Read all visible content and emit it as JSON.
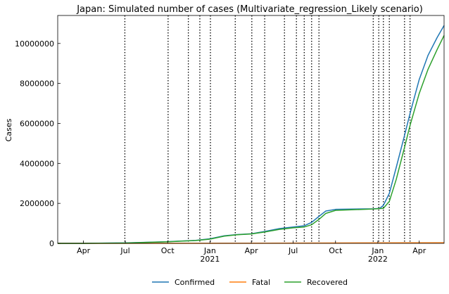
{
  "chart_data": {
    "type": "line",
    "title": "Japan: Simulated number of cases (Multivariate_regression_Likely scenario)",
    "xlabel": "",
    "ylabel": "Cases",
    "x_range": [
      "2020-02-05",
      "2022-05-25"
    ],
    "ylim": [
      0,
      11400000
    ],
    "y_ticks": [
      0,
      2000000,
      4000000,
      6000000,
      8000000,
      10000000
    ],
    "x_ticks": [
      {
        "date": "2020-04-01",
        "label": "Apr",
        "year": ""
      },
      {
        "date": "2020-07-01",
        "label": "Jul",
        "year": ""
      },
      {
        "date": "2020-10-01",
        "label": "Oct",
        "year": ""
      },
      {
        "date": "2021-01-01",
        "label": "Jan",
        "year": "2021"
      },
      {
        "date": "2021-04-01",
        "label": "Apr",
        "year": ""
      },
      {
        "date": "2021-07-01",
        "label": "Jul",
        "year": ""
      },
      {
        "date": "2021-10-01",
        "label": "Oct",
        "year": ""
      },
      {
        "date": "2022-01-01",
        "label": "Jan",
        "year": "2022"
      },
      {
        "date": "2022-04-01",
        "label": "Apr",
        "year": ""
      }
    ],
    "change_dates": [
      "2020-06-30",
      "2020-10-02",
      "2020-11-15",
      "2020-12-10",
      "2021-01-02",
      "2021-02-25",
      "2021-04-02",
      "2021-04-30",
      "2021-06-12",
      "2021-07-08",
      "2021-07-25",
      "2021-08-10",
      "2021-08-26",
      "2021-12-22",
      "2022-01-03",
      "2022-01-13",
      "2022-01-26",
      "2022-02-28",
      "2022-03-12"
    ],
    "series": [
      {
        "name": "Confirmed",
        "color": "#1f77b4",
        "points": [
          [
            "2020-02-05",
            0
          ],
          [
            "2020-04-01",
            2000
          ],
          [
            "2020-07-01",
            20000
          ],
          [
            "2020-10-01",
            85000
          ],
          [
            "2020-12-01",
            150000
          ],
          [
            "2021-01-01",
            230000
          ],
          [
            "2021-02-01",
            380000
          ],
          [
            "2021-03-01",
            440000
          ],
          [
            "2021-04-01",
            480000
          ],
          [
            "2021-05-01",
            600000
          ],
          [
            "2021-06-01",
            740000
          ],
          [
            "2021-07-01",
            820000
          ],
          [
            "2021-07-25",
            880000
          ],
          [
            "2021-08-10",
            1050000
          ],
          [
            "2021-08-26",
            1350000
          ],
          [
            "2021-09-10",
            1620000
          ],
          [
            "2021-10-01",
            1700000
          ],
          [
            "2021-12-22",
            1730000
          ],
          [
            "2022-01-05",
            1750000
          ],
          [
            "2022-01-13",
            1900000
          ],
          [
            "2022-01-26",
            2500000
          ],
          [
            "2022-02-10",
            3800000
          ],
          [
            "2022-02-28",
            5400000
          ],
          [
            "2022-03-12",
            6500000
          ],
          [
            "2022-04-01",
            8200000
          ],
          [
            "2022-04-20",
            9400000
          ],
          [
            "2022-05-10",
            10300000
          ],
          [
            "2022-05-25",
            10900000
          ]
        ]
      },
      {
        "name": "Fatal",
        "color": "#ff7f0e",
        "points": [
          [
            "2020-02-05",
            0
          ],
          [
            "2021-01-01",
            3000
          ],
          [
            "2021-10-01",
            18000
          ],
          [
            "2022-03-01",
            25000
          ],
          [
            "2022-05-25",
            30000
          ]
        ]
      },
      {
        "name": "Recovered",
        "color": "#2ca02c",
        "points": [
          [
            "2020-02-05",
            0
          ],
          [
            "2020-04-01",
            1500
          ],
          [
            "2020-07-01",
            18000
          ],
          [
            "2020-10-01",
            80000
          ],
          [
            "2020-12-01",
            140000
          ],
          [
            "2021-01-01",
            210000
          ],
          [
            "2021-02-01",
            360000
          ],
          [
            "2021-03-01",
            430000
          ],
          [
            "2021-04-01",
            470000
          ],
          [
            "2021-05-01",
            570000
          ],
          [
            "2021-06-01",
            700000
          ],
          [
            "2021-07-01",
            780000
          ],
          [
            "2021-07-25",
            820000
          ],
          [
            "2021-08-10",
            930000
          ],
          [
            "2021-08-26",
            1200000
          ],
          [
            "2021-09-10",
            1500000
          ],
          [
            "2021-10-01",
            1650000
          ],
          [
            "2021-12-22",
            1720000
          ],
          [
            "2022-01-13",
            1750000
          ],
          [
            "2022-01-26",
            2100000
          ],
          [
            "2022-02-10",
            3200000
          ],
          [
            "2022-02-28",
            4800000
          ],
          [
            "2022-03-12",
            5900000
          ],
          [
            "2022-04-01",
            7500000
          ],
          [
            "2022-04-20",
            8700000
          ],
          [
            "2022-05-10",
            9700000
          ],
          [
            "2022-05-25",
            10400000
          ]
        ]
      }
    ],
    "legend_position": "bottom-center",
    "grid": false
  }
}
